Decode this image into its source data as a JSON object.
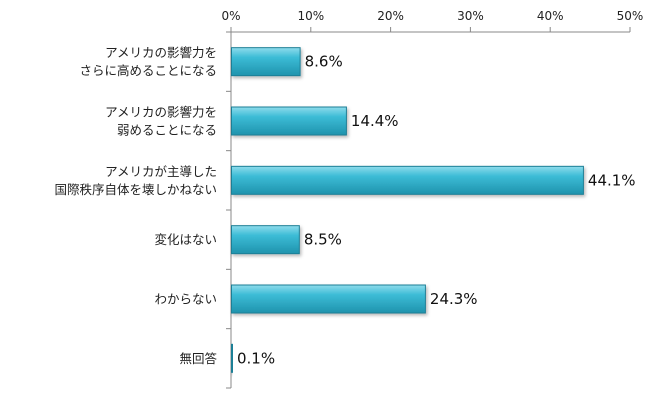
{
  "chart_data": {
    "type": "bar",
    "orientation": "horizontal",
    "categories": [
      [
        "アメリカの影響力を",
        "さらに高めることになる"
      ],
      [
        "アメリカの影響力を",
        "弱めることになる"
      ],
      [
        "アメリカが主導した",
        "国際秩序自体を壊しかねない"
      ],
      [
        "変化はない"
      ],
      [
        "わからない"
      ],
      [
        "無回答"
      ]
    ],
    "values": [
      8.6,
      14.4,
      44.1,
      8.5,
      24.3,
      0.1
    ],
    "value_labels": [
      "8.6%",
      "14.4%",
      "44.1%",
      "8.5%",
      "24.3%",
      "0.1%"
    ],
    "x_ticks": [
      "0%",
      "10%",
      "20%",
      "30%",
      "40%",
      "50%"
    ],
    "xlim": [
      0,
      50
    ],
    "x_axis_position": "top",
    "grid": false,
    "legend": "none",
    "bar_color": "#31B3CD",
    "bar_edge_color": "#1E7F96",
    "axis_color": "#888888"
  }
}
